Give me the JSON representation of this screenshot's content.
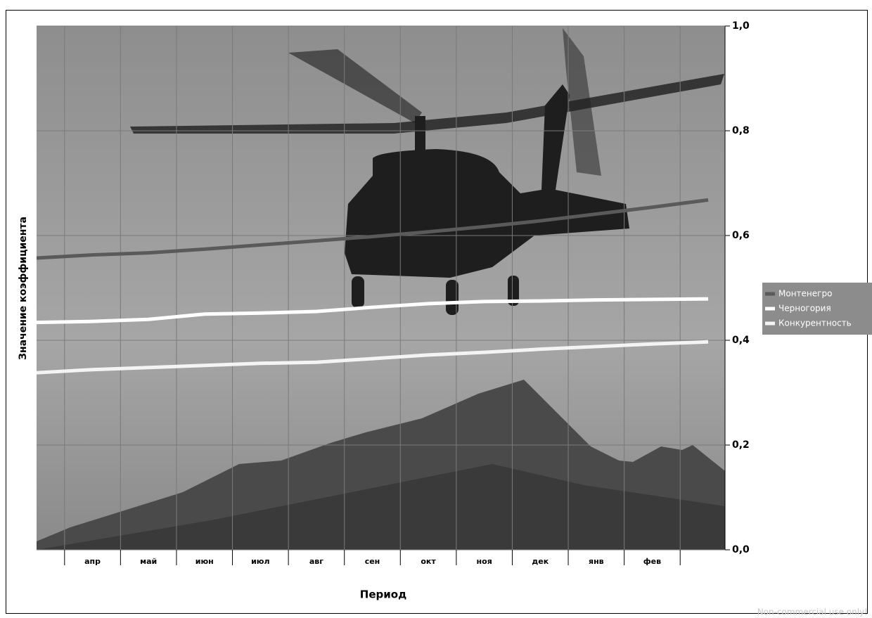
{
  "chart_data": {
    "type": "line",
    "x_label": "Период",
    "y_label": "Значение коэффициента",
    "categories": [
      null,
      "апр",
      "май",
      "июн",
      "июл",
      "авг",
      "сен",
      "окт",
      "ноя",
      "дек",
      "янв",
      "фев",
      null
    ],
    "series": [
      {
        "name": "Монтенегро",
        "color": "#5a5a5a",
        "values": [
          0.557,
          0.563,
          0.567,
          0.574,
          0.582,
          0.59,
          0.598,
          0.607,
          0.617,
          0.628,
          0.641,
          0.654,
          0.668
        ]
      },
      {
        "name": "Черногория",
        "color": "#ffffff",
        "values": [
          0.434,
          0.436,
          0.44,
          0.45,
          0.452,
          0.455,
          0.463,
          0.47,
          0.474,
          0.475,
          0.477,
          0.478,
          0.479
        ]
      },
      {
        "name": "Конкурентность",
        "color": "#f4f4f4",
        "values": [
          0.338,
          0.344,
          0.348,
          0.352,
          0.356,
          0.358,
          0.365,
          0.372,
          0.377,
          0.383,
          0.388,
          0.393,
          0.397
        ]
      }
    ],
    "ylim": [
      0,
      1
    ],
    "yticks": [
      {
        "value": 0,
        "label": "0,0"
      },
      {
        "value": 0.2,
        "label": "0,2"
      },
      {
        "value": 0.4,
        "label": "0,4"
      },
      {
        "value": 0.6,
        "label": "0,6"
      },
      {
        "value": 0.8,
        "label": "0,8"
      },
      {
        "value": 1,
        "label": "1,0"
      }
    ],
    "grid": true,
    "legend": "right",
    "watermark": "Non-commercial use only!"
  }
}
